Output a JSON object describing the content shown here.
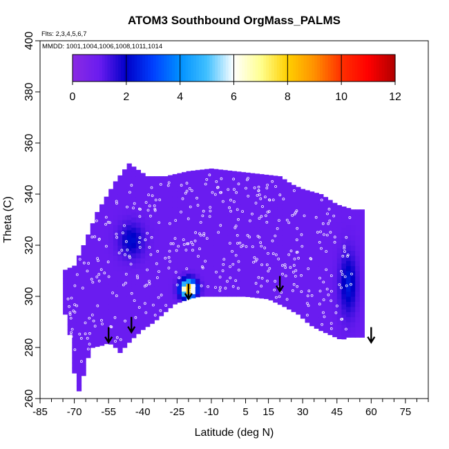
{
  "chart_data": {
    "type": "heatmap",
    "title": "ATOM3 Southbound OrgMass_PALMS",
    "annotations": {
      "flights": "Flts: 2,3,4,5,6,7",
      "dates": "MMDD: 1001,1004,1006,1008,1011,1014"
    },
    "xlabel": "Latitude (deg N)",
    "ylabel": "Theta (C)",
    "xlim": [
      -85,
      85
    ],
    "ylim": [
      260,
      400
    ],
    "x_ticks": [
      -85,
      -70,
      -55,
      -40,
      -25,
      -10,
      5,
      15,
      30,
      45,
      60,
      75
    ],
    "x_minor_tick_step": 5,
    "y_ticks": [
      260,
      280,
      300,
      320,
      340,
      360,
      380,
      400
    ],
    "colorbar": {
      "range": [
        0,
        12
      ],
      "ticks": [
        0,
        2,
        4,
        6,
        8,
        10,
        12
      ],
      "colors": [
        "#8a2be2",
        "#6a1cf0",
        "#0000c8",
        "#0040ff",
        "#0090ff",
        "#40c0ff",
        "#ffffff",
        "#ffff90",
        "#ffd000",
        "#ff9000",
        "#ff3000",
        "#ff0000",
        "#b00000"
      ]
    },
    "field_extent": {
      "lat": [
        -75,
        56
      ],
      "theta_bottom": [
        [
          -75,
          297
        ],
        [
          -72,
          285
        ],
        [
          -70,
          270
        ],
        [
          -69,
          262
        ],
        [
          -67,
          264
        ],
        [
          -65,
          274
        ],
        [
          -62,
          280
        ],
        [
          -57,
          281
        ],
        [
          -55,
          282
        ],
        [
          -52,
          280
        ],
        [
          -50,
          278
        ],
        [
          -45,
          283
        ],
        [
          -40,
          287
        ],
        [
          -35,
          290
        ],
        [
          -30,
          294
        ],
        [
          -26,
          297
        ],
        [
          -20,
          299
        ],
        [
          -15,
          300
        ],
        [
          -5,
          300
        ],
        [
          5,
          300
        ],
        [
          15,
          299
        ],
        [
          22,
          296
        ],
        [
          28,
          293
        ],
        [
          33,
          289
        ],
        [
          37,
          287
        ],
        [
          42,
          285
        ],
        [
          47,
          283
        ],
        [
          50,
          284
        ],
        [
          56,
          284
        ]
      ],
      "theta_top": [
        [
          -75,
          310
        ],
        [
          -70,
          312
        ],
        [
          -65,
          322
        ],
        [
          -60,
          333
        ],
        [
          -52,
          345
        ],
        [
          -46,
          352
        ],
        [
          -38,
          347
        ],
        [
          -30,
          347
        ],
        [
          -20,
          349
        ],
        [
          -10,
          350
        ],
        [
          0,
          349
        ],
        [
          10,
          348
        ],
        [
          20,
          347
        ],
        [
          25,
          344
        ],
        [
          30,
          342
        ],
        [
          38,
          340
        ],
        [
          45,
          336
        ],
        [
          52,
          334
        ],
        [
          56,
          334
        ]
      ]
    },
    "background_value": 1,
    "features": [
      {
        "label": "low region (upper southern midlatitudes)",
        "lat": -45,
        "theta": 322,
        "value": 2.2
      },
      {
        "label": "low region (northern midlatitudes)",
        "lat": 50,
        "theta": 305,
        "value": 2.4
      },
      {
        "label": "enhancement",
        "lat": -20,
        "theta": 303,
        "value": 9
      }
    ],
    "tropopause_arrows": [
      {
        "lat": -55,
        "theta": 282
      },
      {
        "lat": -45,
        "theta": 286
      },
      {
        "lat": -20,
        "theta": 299
      },
      {
        "lat": 20,
        "theta": 302
      },
      {
        "lat": 60,
        "theta": 282
      }
    ],
    "sample_points": "white open circles marking PALMS measurements along flight tracks"
  }
}
